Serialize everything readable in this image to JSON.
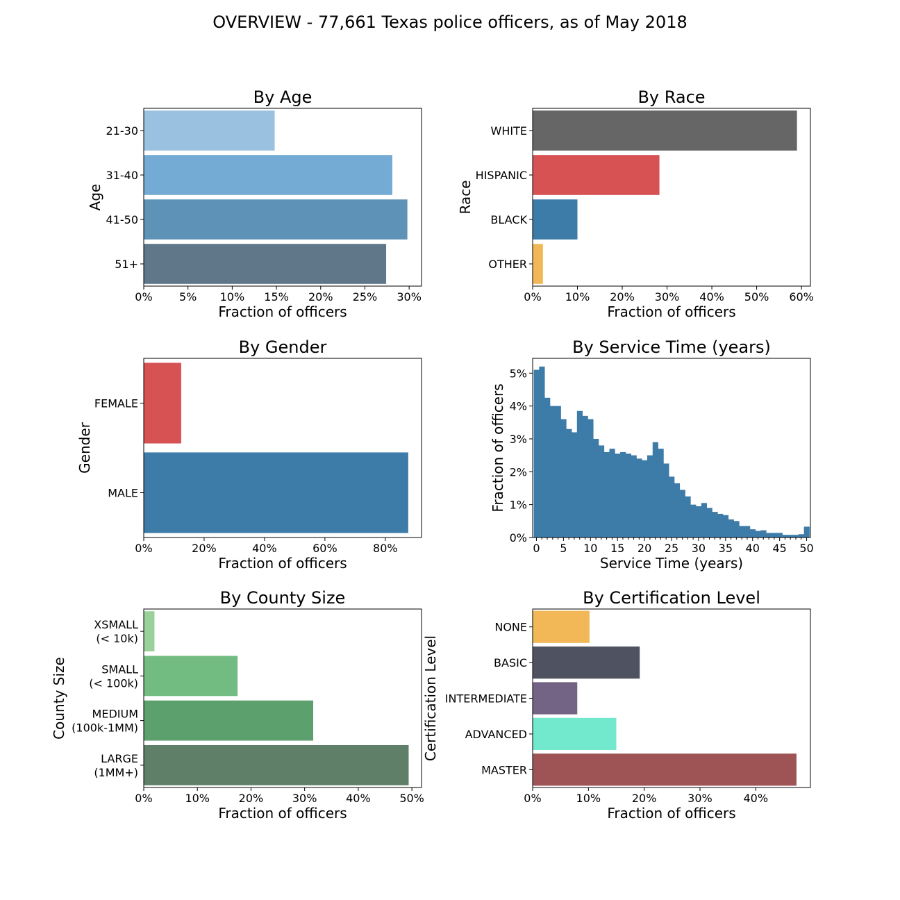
{
  "figure": {
    "title": "OVERVIEW - 77,661 Texas police officers, as of May 2018"
  },
  "chart_data": [
    {
      "id": "age",
      "type": "bar",
      "orientation": "horizontal",
      "title": "By Age",
      "xlabel": "Fraction of officers",
      "ylabel": "Age",
      "categories": [
        "21-30",
        "31-40",
        "41-50",
        "51+"
      ],
      "values": [
        0.148,
        0.281,
        0.298,
        0.274
      ],
      "colors": [
        "#9ac2e0",
        "#74abd4",
        "#5f92b7",
        "#5f7789"
      ],
      "xlim": [
        0,
        0.314
      ],
      "xticks": [
        0,
        0.05,
        0.1,
        0.15,
        0.2,
        0.25,
        0.3
      ],
      "xtick_labels": [
        "0%",
        "5%",
        "10%",
        "15%",
        "20%",
        "25%",
        "30%"
      ]
    },
    {
      "id": "race",
      "type": "bar",
      "orientation": "horizontal",
      "title": "By Race",
      "xlabel": "Fraction of officers",
      "ylabel": "Race",
      "categories": [
        "WHITE",
        "HISPANIC",
        "BLACK",
        "OTHER"
      ],
      "values": [
        0.59,
        0.283,
        0.1,
        0.023
      ],
      "colors": [
        "#666666",
        "#d65253",
        "#3d7ba8",
        "#f2b858"
      ],
      "xlim": [
        0,
        0.62
      ],
      "xticks": [
        0,
        0.1,
        0.2,
        0.3,
        0.4,
        0.5,
        0.6
      ],
      "xtick_labels": [
        "0%",
        "10%",
        "20%",
        "30%",
        "40%",
        "50%",
        "60%"
      ]
    },
    {
      "id": "gender",
      "type": "bar",
      "orientation": "horizontal",
      "title": "By Gender",
      "xlabel": "Fraction of officers",
      "ylabel": "Gender",
      "categories": [
        "FEMALE",
        "MALE"
      ],
      "values": [
        0.124,
        0.876
      ],
      "colors": [
        "#d65253",
        "#3d7ba8"
      ],
      "xlim": [
        0,
        0.92
      ],
      "xticks": [
        0,
        0.2,
        0.4,
        0.6,
        0.8
      ],
      "xtick_labels": [
        "0%",
        "20%",
        "40%",
        "60%",
        "80%"
      ]
    },
    {
      "id": "service",
      "type": "bar",
      "subtype": "histogram",
      "title": "By Service Time (years)",
      "xlabel": "Service Time (years)",
      "ylabel": "Fraction of officers",
      "color": "#3d7ba8",
      "x": [
        0,
        1,
        2,
        3,
        4,
        5,
        6,
        7,
        8,
        9,
        10,
        11,
        12,
        13,
        14,
        15,
        16,
        17,
        18,
        19,
        20,
        21,
        22,
        23,
        24,
        25,
        26,
        27,
        28,
        29,
        30,
        31,
        32,
        33,
        34,
        35,
        36,
        37,
        38,
        39,
        40,
        41,
        42,
        43,
        44,
        45,
        46,
        47,
        48,
        49,
        50
      ],
      "values": [
        0.051,
        0.052,
        0.0425,
        0.04,
        0.04,
        0.036,
        0.033,
        0.032,
        0.0385,
        0.037,
        0.036,
        0.03,
        0.028,
        0.026,
        0.027,
        0.0255,
        0.026,
        0.0255,
        0.025,
        0.024,
        0.0235,
        0.025,
        0.029,
        0.027,
        0.0225,
        0.0185,
        0.0165,
        0.0145,
        0.0125,
        0.01,
        0.0095,
        0.0105,
        0.009,
        0.0078,
        0.0072,
        0.0068,
        0.0055,
        0.005,
        0.0035,
        0.0035,
        0.0025,
        0.002,
        0.0022,
        0.0014,
        0.0014,
        0.0014,
        0.0008,
        0.0008,
        0.0008,
        0.001,
        0.0033
      ],
      "xlim": [
        -0.7,
        50.7
      ],
      "ylim": [
        0,
        0.0545
      ],
      "xticks": [
        0,
        5,
        10,
        15,
        20,
        25,
        30,
        35,
        40,
        45,
        50
      ],
      "xtick_labels": [
        "0",
        "5",
        "10",
        "15",
        "20",
        "25",
        "30",
        "35",
        "40",
        "45",
        "50"
      ],
      "yticks": [
        0,
        0.01,
        0.02,
        0.03,
        0.04,
        0.05
      ],
      "ytick_labels": [
        "0%",
        "1%",
        "2%",
        "3%",
        "4%",
        "5%"
      ]
    },
    {
      "id": "county",
      "type": "bar",
      "orientation": "horizontal",
      "title": "By County Size",
      "xlabel": "Fraction of officers",
      "ylabel": "County Size",
      "categories": [
        "XSMALL\n(< 10k)",
        "SMALL\n(< 100k)",
        "MEDIUM\n(100k-1MM)",
        "LARGE\n(1MM+)"
      ],
      "values": [
        0.02,
        0.175,
        0.316,
        0.494
      ],
      "colors": [
        "#9ad19b",
        "#72bc82",
        "#5ca06e",
        "#5f7f68"
      ],
      "xlim": [
        0,
        0.518
      ],
      "xticks": [
        0,
        0.1,
        0.2,
        0.3,
        0.4,
        0.5
      ],
      "xtick_labels": [
        "0%",
        "10%",
        "20%",
        "30%",
        "40%",
        "50%"
      ]
    },
    {
      "id": "cert",
      "type": "bar",
      "orientation": "horizontal",
      "title": "By Certification Level",
      "xlabel": "Fraction of officers",
      "ylabel": "Certification Level",
      "categories": [
        "NONE",
        "BASIC",
        "INTERMEDIATE",
        "ADVANCED",
        "MASTER"
      ],
      "values": [
        0.102,
        0.192,
        0.08,
        0.15,
        0.473
      ],
      "colors": [
        "#f2b858",
        "#4f5260",
        "#736384",
        "#72e8cc",
        "#9e5355"
      ],
      "xlim": [
        0,
        0.498
      ],
      "xticks": [
        0,
        0.1,
        0.2,
        0.3,
        0.4
      ],
      "xtick_labels": [
        "0%",
        "10%",
        "20%",
        "30%",
        "40%"
      ]
    }
  ]
}
